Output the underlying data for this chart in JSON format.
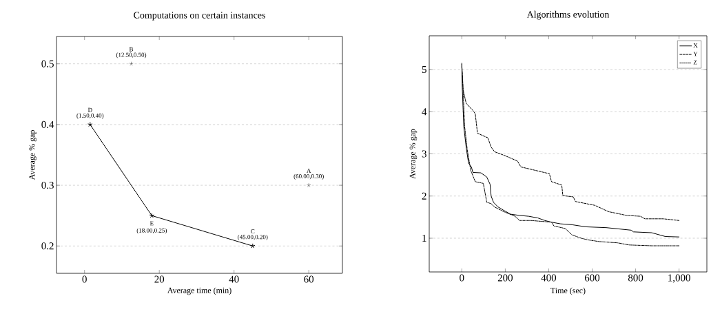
{
  "chart_data": [
    {
      "type": "scatter",
      "title": "Computations on certain instances",
      "xlabel": "Average time (min)",
      "ylabel": "Average % gap",
      "xlim": [
        -7.5,
        69
      ],
      "ylim": [
        0.155,
        0.545
      ],
      "xticks": [
        0,
        20,
        40,
        60
      ],
      "yticks": [
        0.2,
        0.3,
        0.4,
        0.5
      ],
      "grid": "y",
      "marker": "cross",
      "series": [
        {
          "type": "scatter",
          "color": "#000000",
          "x": [
            60,
            12.5
          ],
          "values": [
            0.3,
            0.5
          ]
        },
        {
          "type": "line",
          "color": "#000000",
          "line_style": "solid",
          "x": [
            1.5,
            18,
            45
          ],
          "values": [
            0.4,
            0.25,
            0.2
          ]
        }
      ],
      "annotations": [
        {
          "text": "A",
          "x": 60,
          "y": 0.3
        },
        {
          "text": "(60.00,0.30)",
          "x": 60,
          "y": 0.3
        },
        {
          "text": "B",
          "x": 12.5,
          "y": 0.5
        },
        {
          "text": "(12.50,0.50)",
          "x": 12.5,
          "y": 0.5
        },
        {
          "text": "C",
          "x": 45,
          "y": 0.2
        },
        {
          "text": "(45.00,0.20)",
          "x": 45,
          "y": 0.2
        },
        {
          "text": "D",
          "x": 1.5,
          "y": 0.4
        },
        {
          "text": "(1.50,0.40)",
          "x": 1.5,
          "y": 0.4
        },
        {
          "text": "E",
          "x": 18,
          "y": 0.25
        },
        {
          "text": "(18.00,0.25)",
          "x": 18,
          "y": 0.25
        }
      ]
    },
    {
      "type": "line",
      "title": "Algorithms evolution",
      "xlabel": "Time (sec)",
      "ylabel": "Average % gap",
      "xlim": [
        -150,
        1128
      ],
      "ylim": [
        0.2,
        5.8
      ],
      "xticks": [
        0,
        200,
        400,
        600,
        800,
        {
          "value": 1000,
          "label": "1,000"
        }
      ],
      "yticks": [
        1,
        2,
        3,
        4,
        5
      ],
      "grid": "y",
      "legend": "top right",
      "marker": "none",
      "series": [
        {
          "name": "X",
          "color": "#000000",
          "line_style": "solid",
          "x": [
            0,
            2,
            9,
            20,
            31,
            44,
            51,
            88,
            115,
            130,
            135,
            146,
            167,
            193,
            224,
            266,
            308,
            350,
            382,
            413,
            455,
            507,
            570,
            665,
            780,
            790,
            874,
            937,
            1000
          ],
          "values": [
            5.15,
            4.58,
            3.65,
            3.16,
            2.78,
            2.69,
            2.56,
            2.55,
            2.45,
            2.28,
            2.0,
            1.85,
            1.74,
            1.66,
            1.57,
            1.54,
            1.52,
            1.48,
            1.42,
            1.38,
            1.34,
            1.32,
            1.27,
            1.25,
            1.19,
            1.15,
            1.13,
            1.04,
            1.03
          ]
        },
        {
          "name": "Y",
          "color": "#000000",
          "line_style": "dashed",
          "x": [
            0,
            6,
            20,
            51,
            62,
            72,
            120,
            135,
            151,
            193,
            256,
            272,
            403,
            413,
            460,
            465,
            513,
            523,
            612,
            675,
            759,
            822,
            843,
            927,
            1000
          ],
          "values": [
            5.07,
            4.52,
            4.2,
            4.03,
            3.95,
            3.49,
            3.38,
            3.16,
            3.05,
            2.97,
            2.83,
            2.69,
            2.53,
            2.34,
            2.26,
            2.01,
            1.98,
            1.87,
            1.78,
            1.63,
            1.54,
            1.52,
            1.46,
            1.46,
            1.42
          ]
        },
        {
          "name": "Z",
          "color": "#000000",
          "line_style": "dashdotted",
          "x": [
            0,
            4,
            13,
            25,
            41,
            62,
            99,
            115,
            135,
            151,
            193,
            245,
            266,
            319,
            413,
            424,
            476,
            507,
            549,
            581,
            633,
            717,
            770,
            874,
            1000
          ],
          "values": [
            5.13,
            4.74,
            3.65,
            3.1,
            2.61,
            2.34,
            2.3,
            1.85,
            1.82,
            1.74,
            1.63,
            1.52,
            1.42,
            1.42,
            1.38,
            1.29,
            1.23,
            1.08,
            1.0,
            0.96,
            0.92,
            0.89,
            0.84,
            0.82,
            0.82
          ]
        }
      ]
    }
  ]
}
